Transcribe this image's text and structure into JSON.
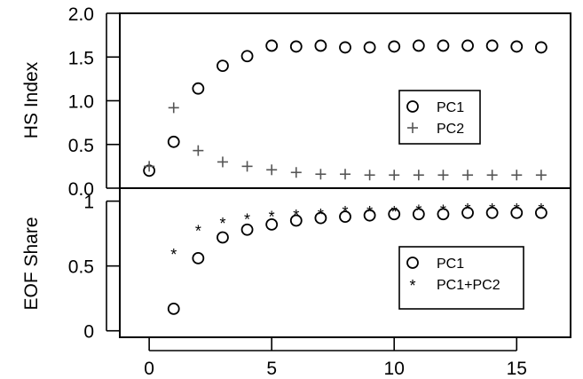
{
  "chart_data": [
    {
      "type": "scatter",
      "ylabel": "HS Index",
      "ylim": [
        0,
        2
      ],
      "yticks": [
        "0.0",
        "0.5",
        "1.0",
        "1.5",
        "2.0"
      ],
      "xlim": [
        -1.2,
        17.2
      ],
      "legend_position": "center-right",
      "series": [
        {
          "name": "PC1",
          "marker": "open-circle",
          "color": "#000000",
          "x": [
            0,
            1,
            2,
            3,
            4,
            5,
            6,
            7,
            8,
            9,
            10,
            11,
            12,
            13,
            14,
            15,
            16
          ],
          "values": [
            0.2,
            0.53,
            1.14,
            1.4,
            1.51,
            1.63,
            1.62,
            1.63,
            1.61,
            1.61,
            1.62,
            1.63,
            1.63,
            1.63,
            1.63,
            1.62,
            1.61
          ]
        },
        {
          "name": "PC2",
          "marker": "plus",
          "color": "#555555",
          "x": [
            0,
            1,
            2,
            3,
            4,
            5,
            6,
            7,
            8,
            9,
            10,
            11,
            12,
            13,
            14,
            15,
            16
          ],
          "values": [
            0.25,
            0.92,
            0.43,
            0.3,
            0.25,
            0.21,
            0.18,
            0.16,
            0.16,
            0.15,
            0.15,
            0.15,
            0.15,
            0.15,
            0.15,
            0.15,
            0.15
          ]
        }
      ]
    },
    {
      "type": "scatter",
      "ylabel": "EOF Share",
      "xlabel": "",
      "ylim": [
        -0.05,
        1.1
      ],
      "yticks": [
        "0",
        "0.5",
        "1"
      ],
      "xlim": [
        -1.2,
        17.2
      ],
      "xticks": [
        "0",
        "5",
        "10",
        "15"
      ],
      "legend_position": "center-right",
      "series": [
        {
          "name": "PC1",
          "marker": "open-circle",
          "color": "#000000",
          "x": [
            1,
            2,
            3,
            4,
            5,
            6,
            7,
            8,
            9,
            10,
            11,
            12,
            13,
            14,
            15,
            16
          ],
          "values": [
            0.17,
            0.56,
            0.72,
            0.78,
            0.82,
            0.85,
            0.87,
            0.88,
            0.89,
            0.9,
            0.9,
            0.9,
            0.91,
            0.91,
            0.91,
            0.91
          ]
        },
        {
          "name": "PC1+PC2",
          "marker": "asterisk",
          "color": "#000000",
          "x": [
            1,
            2,
            3,
            4,
            5,
            6,
            7,
            8,
            9,
            10,
            11,
            12,
            13,
            14,
            15,
            16
          ],
          "values": [
            0.6,
            0.78,
            0.84,
            0.87,
            0.89,
            0.9,
            0.91,
            0.93,
            0.93,
            0.93,
            0.94,
            0.94,
            0.95,
            0.95,
            0.95,
            0.95
          ]
        }
      ]
    }
  ]
}
